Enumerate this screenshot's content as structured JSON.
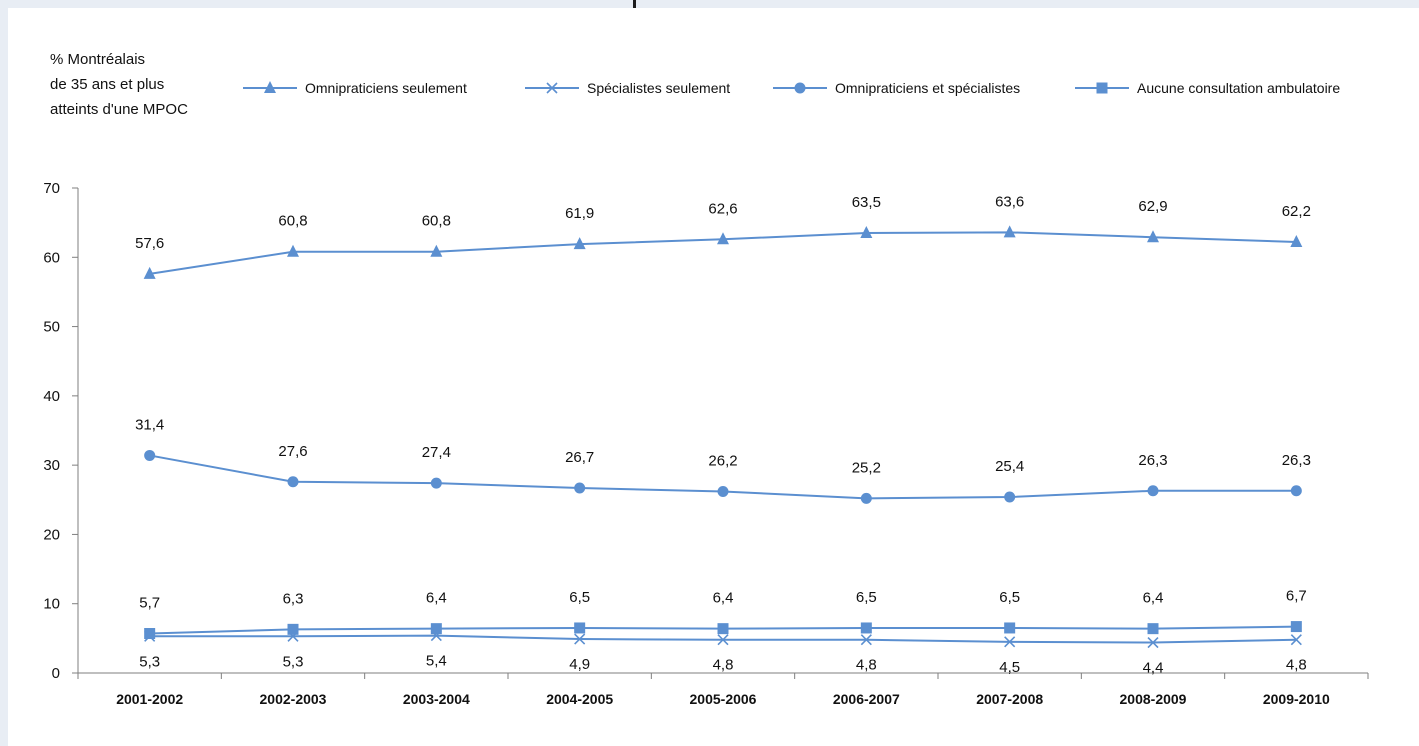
{
  "colors": {
    "series": "#5b8fd0",
    "axis": "#7f7f7f",
    "page_background": "#e8edf4"
  },
  "chart_data": {
    "type": "line",
    "title": "",
    "ylabel_lines": [
      "% Montréalais",
      "de 35 ans et plus",
      "atteints d'une MPOC"
    ],
    "xlabel": "",
    "categories": [
      "2001-2002",
      "2002-2003",
      "2003-2004",
      "2004-2005",
      "2005-2006",
      "2006-2007",
      "2007-2008",
      "2008-2009",
      "2009-2010"
    ],
    "ylim": [
      0,
      70
    ],
    "yticks": [
      0,
      10,
      20,
      30,
      40,
      50,
      60,
      70
    ],
    "grid": false,
    "legend_position": "top",
    "series": [
      {
        "name": "Omnipraticiens  seulement",
        "marker": "triangle",
        "label_position": "above",
        "values": [
          57.6,
          60.8,
          60.8,
          61.9,
          62.6,
          63.5,
          63.6,
          62.9,
          62.2
        ],
        "labels": [
          "57,6",
          "60,8",
          "60,8",
          "61,9",
          "62,6",
          "63,5",
          "63,6",
          "62,9",
          "62,2"
        ]
      },
      {
        "name": "Spécialistes  seulement",
        "marker": "x",
        "label_position": "below",
        "values": [
          5.3,
          5.3,
          5.4,
          4.9,
          4.8,
          4.8,
          4.5,
          4.4,
          4.8
        ],
        "labels": [
          "5,3",
          "5,3",
          "5,4",
          "4,9",
          "4,8",
          "4,8",
          "4,5",
          "4,4",
          "4,8"
        ]
      },
      {
        "name": "Omnipraticiens  et  spécialistes",
        "marker": "circle",
        "label_position": "above",
        "values": [
          31.4,
          27.6,
          27.4,
          26.7,
          26.2,
          25.2,
          25.4,
          26.3,
          26.3
        ],
        "labels": [
          "31,4",
          "27,6",
          "27,4",
          "26,7",
          "26,2",
          "25,2",
          "25,4",
          "26,3",
          "26,3"
        ]
      },
      {
        "name": "Aucune  consultation  ambulatoire",
        "marker": "square",
        "label_position": "above",
        "values": [
          5.7,
          6.3,
          6.4,
          6.5,
          6.4,
          6.5,
          6.5,
          6.4,
          6.7
        ],
        "labels": [
          "5,7",
          "6,3",
          "6,4",
          "6,5",
          "6,4",
          "6,5",
          "6,5",
          "6,4",
          "6,7"
        ]
      }
    ]
  }
}
